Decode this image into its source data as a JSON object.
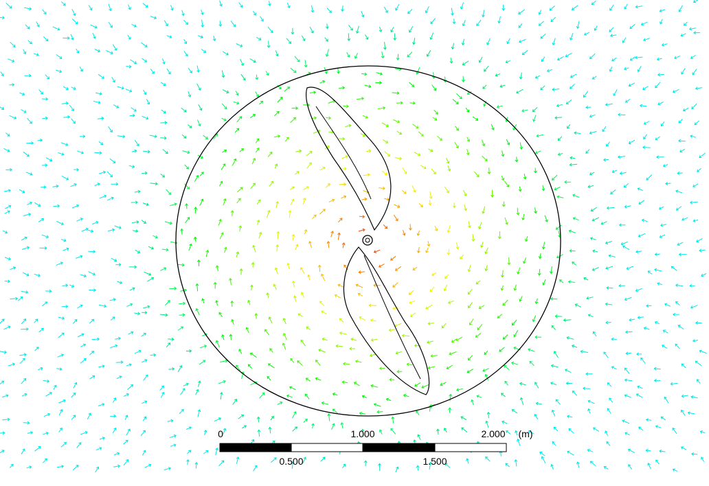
{
  "scale_bar": {
    "top_labels": [
      "0",
      "1.000",
      "2.000"
    ],
    "unit": "(m)",
    "bottom_labels": [
      "0.500",
      "1.500"
    ]
  }
}
